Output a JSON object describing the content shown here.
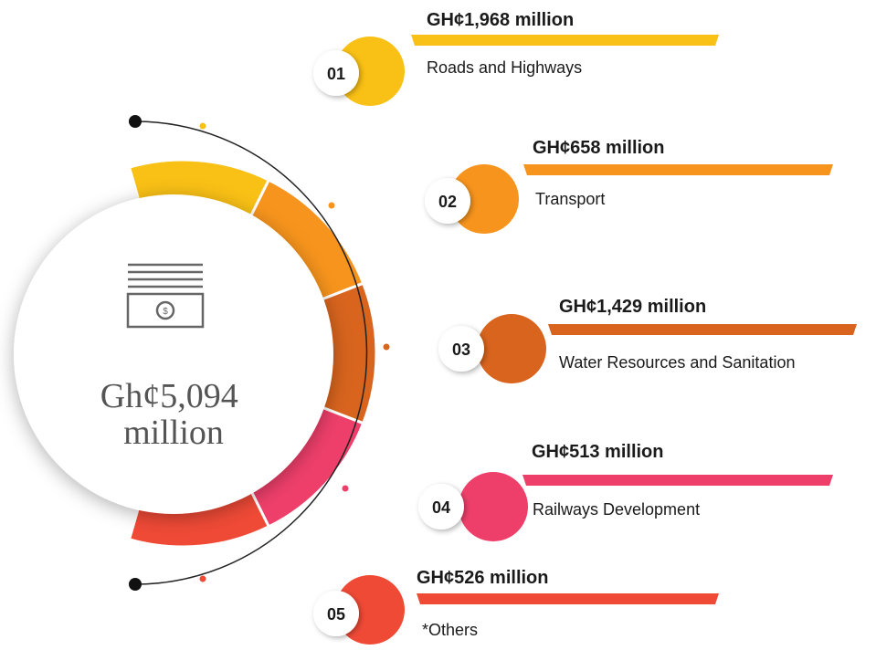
{
  "center": {
    "lines": [
      "Gh¢5,094",
      "million"
    ]
  },
  "items": [
    {
      "number": "01",
      "amount": "GH¢1,968 million",
      "label": "Roads and Highways",
      "color": "#f9c015"
    },
    {
      "number": "02",
      "amount": "GH¢658 million",
      "label": "Transport",
      "color": "#f7941d"
    },
    {
      "number": "03",
      "amount": "GH¢1,429 million",
      "label": "Water Resources and Sanitation",
      "color": "#d8641e"
    },
    {
      "number": "04",
      "amount": "GH¢513 million",
      "label": "Railways Development",
      "color": "#ee3f6a"
    },
    {
      "number": "05",
      "amount": "GH¢526 million",
      "label": "*Others",
      "color": "#ef4a36"
    }
  ]
}
